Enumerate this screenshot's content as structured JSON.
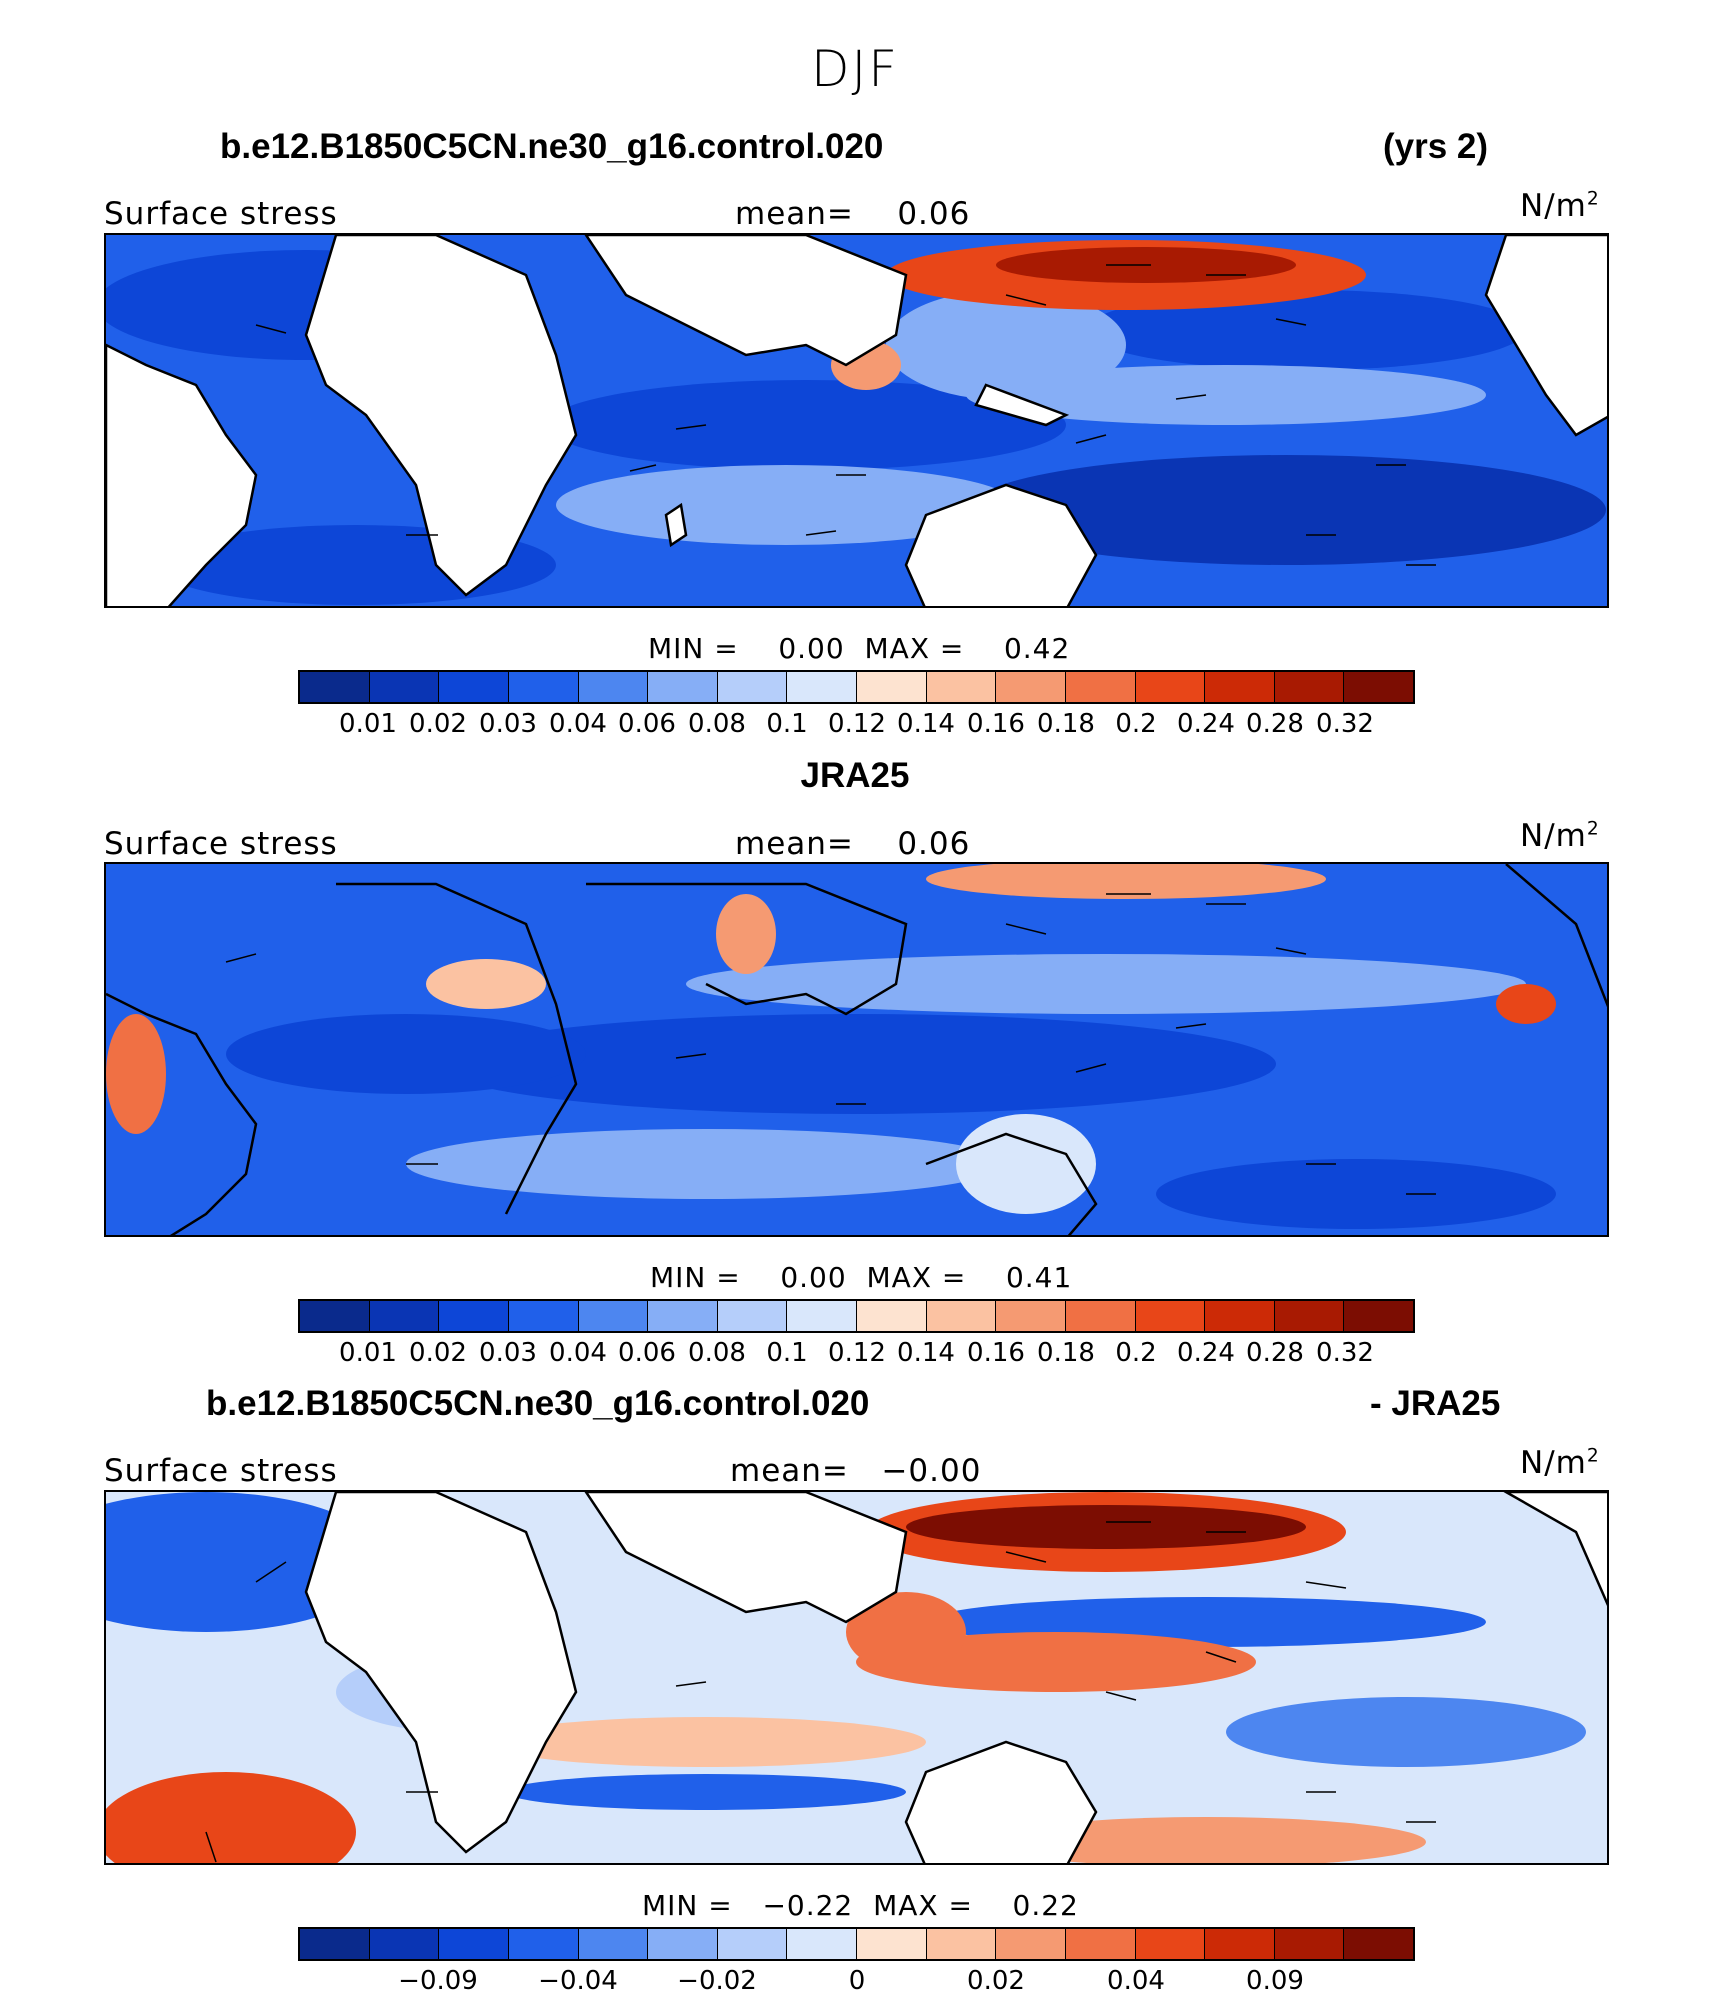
{
  "title": "DJF",
  "units": "N/m",
  "units_exp": "2",
  "colors": {
    "blues": [
      "#0a2a8c",
      "#0a35b4",
      "#0d46d7",
      "#2060ea",
      "#4d86f0",
      "#86aef6",
      "#b5cefa",
      "#d9e7fb"
    ],
    "reds": [
      "#fde3d0",
      "#fbc2a2",
      "#f59a72",
      "#f07044",
      "#e84618",
      "#cc2a06",
      "#a81a02",
      "#7c0d02"
    ],
    "land": "#ffffff",
    "coast": "#000000"
  },
  "panels": [
    {
      "id": "model",
      "title_left": "b.e12.B1850C5CN.ne30_g16.control.020",
      "title_right": "(yrs 2)",
      "variable": "Surface stress",
      "mean_label": "mean=",
      "mean_value": "0.06",
      "min_label": "MIN =",
      "min_value": "0.00",
      "max_label": "MAX =",
      "max_value": "0.42",
      "colorbar_ticks": [
        "0.01",
        "0.02",
        "0.03",
        "0.04",
        "0.06",
        "0.08",
        "0.1",
        "0.12",
        "0.14",
        "0.16",
        "0.18",
        "0.2",
        "0.24",
        "0.28",
        "0.32"
      ]
    },
    {
      "id": "obs",
      "title_left": "JRA25",
      "title_right": "",
      "variable": "Surface stress",
      "mean_label": "mean=",
      "mean_value": "0.06",
      "min_label": "MIN =",
      "min_value": "0.00",
      "max_label": "MAX =",
      "max_value": "0.41",
      "colorbar_ticks": [
        "0.01",
        "0.02",
        "0.03",
        "0.04",
        "0.06",
        "0.08",
        "0.1",
        "0.12",
        "0.14",
        "0.16",
        "0.18",
        "0.2",
        "0.24",
        "0.28",
        "0.32"
      ]
    },
    {
      "id": "diff",
      "title_left": "b.e12.B1850C5CN.ne30_g16.control.020",
      "title_right": "- JRA25",
      "variable": "Surface stress",
      "mean_label": "mean=",
      "mean_value": "−0.00",
      "min_label": "MIN =",
      "min_value": "−0.22",
      "max_label": "MAX =",
      "max_value": "0.22",
      "colorbar_ticks": [
        "−0.09",
        "−0.04",
        "−0.02",
        "0",
        "0.02",
        "0.04",
        "0.09"
      ]
    }
  ]
}
